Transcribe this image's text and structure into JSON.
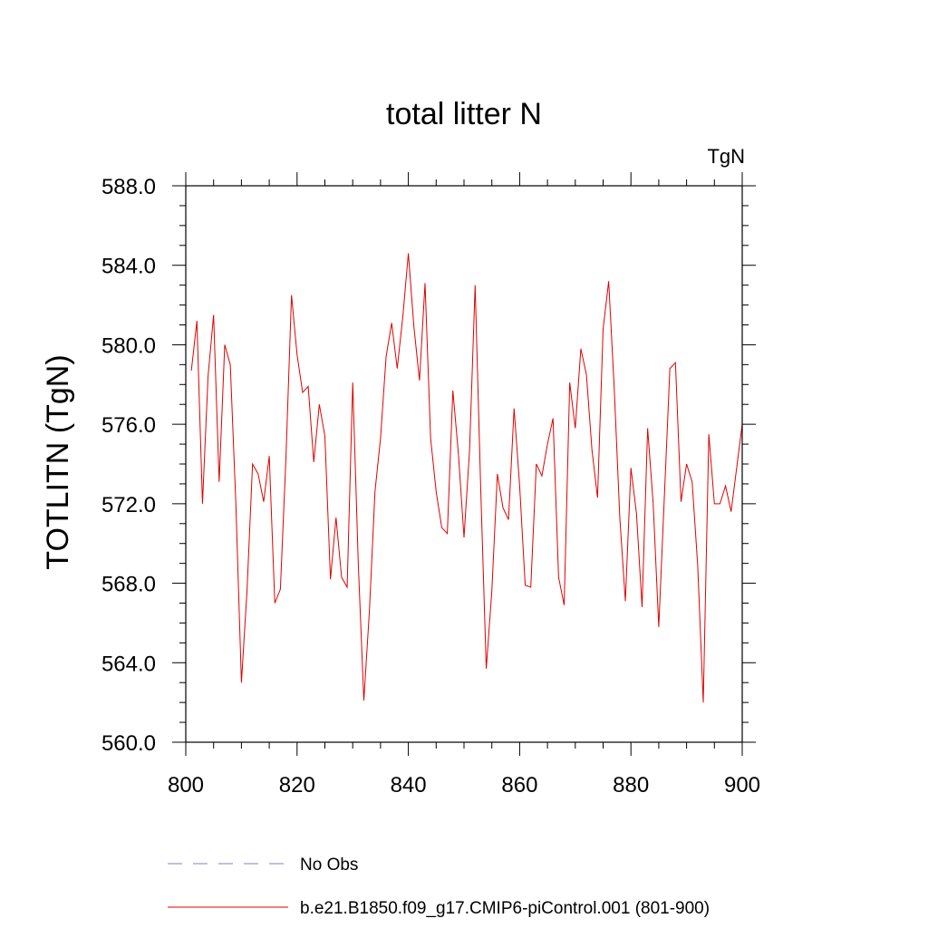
{
  "chart_data": {
    "type": "line",
    "title": "total litter N",
    "units_label": "TgN",
    "ylabel": "TOTLITN  (TgN)",
    "xlabel": "",
    "xlim": [
      800,
      900
    ],
    "ylim": [
      560,
      588
    ],
    "x_ticks": [
      800,
      820,
      840,
      860,
      880,
      900
    ],
    "x_tick_labels": [
      "800",
      "820",
      "840",
      "860",
      "880",
      "900"
    ],
    "y_ticks": [
      560,
      564,
      568,
      572,
      576,
      580,
      584,
      588
    ],
    "y_tick_labels": [
      "560.0",
      "564.0",
      "568.0",
      "572.0",
      "576.0",
      "580.0",
      "584.0",
      "588.0"
    ],
    "grid": false,
    "legend": [
      {
        "label": "No Obs",
        "color": "#8080c0",
        "style": "dashed"
      },
      {
        "label": "b.e21.B1850.f09_g17.CMIP6-piControl.001 (801-900)",
        "color": "#e00000",
        "style": "solid"
      }
    ],
    "series": [
      {
        "name": "b.e21.B1850.f09_g17.CMIP6-piControl.001 (801-900)",
        "color": "#e00000",
        "x": [
          801,
          802,
          803,
          804,
          805,
          806,
          807,
          808,
          809,
          810,
          811,
          812,
          813,
          814,
          815,
          816,
          817,
          818,
          819,
          820,
          821,
          822,
          823,
          824,
          825,
          826,
          827,
          828,
          829,
          830,
          831,
          832,
          833,
          834,
          835,
          836,
          837,
          838,
          839,
          840,
          841,
          842,
          843,
          844,
          845,
          846,
          847,
          848,
          849,
          850,
          851,
          852,
          853,
          854,
          855,
          856,
          857,
          858,
          859,
          860,
          861,
          862,
          863,
          864,
          865,
          866,
          867,
          868,
          869,
          870,
          871,
          872,
          873,
          874,
          875,
          876,
          877,
          878,
          879,
          880,
          881,
          882,
          883,
          884,
          885,
          886,
          887,
          888,
          889,
          890,
          891,
          892,
          893,
          894,
          895,
          896,
          897,
          898,
          899,
          900
        ],
        "values": [
          578.7,
          581.2,
          572.0,
          578.4,
          581.5,
          573.1,
          580.0,
          579.0,
          572.0,
          563.0,
          567.6,
          574.0,
          573.5,
          572.1,
          574.4,
          567.0,
          567.7,
          574.3,
          582.5,
          579.5,
          577.6,
          577.9,
          574.1,
          577.0,
          575.4,
          568.2,
          571.3,
          568.3,
          567.8,
          578.1,
          569.0,
          562.1,
          566.6,
          572.6,
          575.3,
          579.4,
          581.1,
          578.8,
          581.4,
          584.6,
          580.9,
          578.2,
          583.1,
          575.3,
          572.6,
          570.8,
          570.5,
          577.7,
          574.5,
          570.3,
          574.7,
          583.0,
          572.8,
          563.7,
          567.6,
          573.5,
          571.8,
          571.2,
          576.8,
          572.9,
          567.9,
          567.8,
          574.0,
          573.4,
          575.0,
          576.3,
          568.3,
          566.9,
          578.1,
          575.8,
          579.8,
          578.5,
          574.7,
          572.3,
          580.8,
          583.2,
          577.8,
          571.3,
          567.1,
          573.8,
          571.5,
          566.8,
          575.8,
          572.0,
          565.8,
          572.3,
          578.8,
          579.1,
          572.1,
          574.0,
          573.1,
          568.9,
          562.0,
          575.5,
          572.0,
          572.0,
          572.9,
          571.6,
          573.8,
          576.0
        ]
      }
    ]
  }
}
